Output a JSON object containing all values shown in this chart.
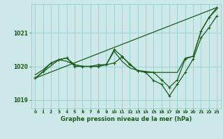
{
  "bg_color": "#cce8e8",
  "grid_color": "#99cccc",
  "line_color": "#1a5c1a",
  "title": "Graphe pression niveau de la mer (hPa)",
  "title_color": "#1a5c1a",
  "xlim": [
    -0.5,
    23.5
  ],
  "ylim": [
    1018.75,
    1021.85
  ],
  "yticks": [
    1019,
    1020,
    1021
  ],
  "xticks": [
    0,
    1,
    2,
    3,
    4,
    5,
    6,
    7,
    8,
    9,
    10,
    11,
    12,
    13,
    14,
    15,
    16,
    17,
    18,
    19,
    20,
    21,
    22,
    23
  ],
  "series": [
    {
      "x": [
        0,
        23
      ],
      "y": [
        1019.65,
        1021.75
      ],
      "has_markers": false,
      "is_trend": true,
      "lw": 0.9
    },
    {
      "x": [
        0,
        1,
        2,
        3,
        4,
        5,
        6,
        7,
        8,
        9,
        10,
        11,
        12,
        13,
        14,
        15,
        16,
        17,
        18,
        19,
        20,
        21,
        22,
        23
      ],
      "y": [
        1019.75,
        1019.9,
        1020.1,
        1020.2,
        1020.15,
        1020.05,
        1020.0,
        1020.0,
        1020.0,
        1020.05,
        1020.45,
        1020.15,
        1019.95,
        1019.88,
        1019.85,
        1019.82,
        1019.82,
        1019.82,
        1019.82,
        1020.25,
        1020.3,
        1021.05,
        1021.45,
        1021.7
      ],
      "has_markers": false,
      "lw": 0.9
    },
    {
      "x": [
        0,
        1,
        2,
        3,
        4,
        5,
        6,
        7,
        8,
        9,
        10,
        11,
        12,
        13,
        14,
        15,
        16,
        17,
        18,
        19,
        20,
        21,
        22,
        23
      ],
      "y": [
        1019.65,
        1019.85,
        1020.1,
        1020.2,
        1020.25,
        1020.0,
        1020.0,
        1020.0,
        1020.05,
        1020.05,
        1020.5,
        1020.3,
        1020.05,
        1019.87,
        1019.82,
        1019.82,
        1019.6,
        1019.38,
        1019.6,
        1020.22,
        1020.3,
        1021.05,
        1021.45,
        1021.75
      ],
      "has_markers": true,
      "lw": 0.9
    },
    {
      "x": [
        0,
        3,
        4,
        5,
        6,
        7,
        8,
        9,
        10,
        11,
        12,
        13,
        14,
        15,
        16,
        17,
        18,
        19,
        20,
        21,
        22,
        23
      ],
      "y": [
        1019.65,
        1020.2,
        1020.25,
        1020.05,
        1020.0,
        1020.0,
        1020.0,
        1020.05,
        1020.1,
        1020.28,
        1020.07,
        1019.87,
        1019.82,
        1019.58,
        1019.47,
        1019.12,
        1019.47,
        1019.82,
        1020.22,
        1020.85,
        1021.15,
        1021.5
      ],
      "has_markers": true,
      "lw": 0.9
    }
  ]
}
